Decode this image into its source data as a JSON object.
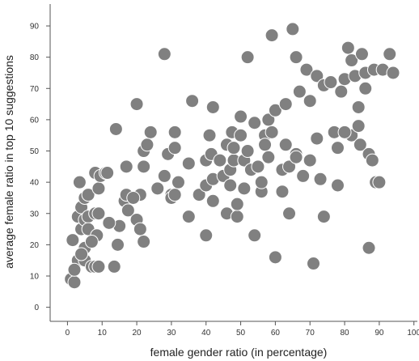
{
  "chart_data": {
    "type": "scatter",
    "xlabel": "female gender ratio (in percentage)",
    "ylabel": "average female ratio in top 10 suggestions",
    "xlim": [
      -5,
      101
    ],
    "ylim": [
      -4.5,
      97
    ],
    "xticks": [
      0,
      10,
      20,
      30,
      40,
      50,
      60,
      70,
      80,
      90,
      100
    ],
    "yticks": [
      0,
      10,
      20,
      30,
      40,
      50,
      60,
      70,
      80,
      90
    ],
    "color": "#808080",
    "x": [
      1,
      2,
      1.5,
      3,
      3,
      3.5,
      4,
      5,
      4,
      5,
      6,
      5,
      6,
      5,
      7,
      4,
      6,
      8,
      8,
      9,
      9,
      9.5,
      8,
      8.5,
      7,
      9,
      11,
      11.5,
      13.5,
      14,
      14.5,
      15,
      16.5,
      17,
      17.5,
      17,
      20,
      20,
      21,
      21,
      22,
      22,
      22,
      23,
      24,
      26,
      28,
      28,
      29,
      30,
      30,
      31,
      31,
      31,
      32,
      35,
      35,
      36,
      38,
      40,
      40,
      40,
      42,
      41,
      42,
      42,
      41.5,
      45,
      46,
      46,
      47,
      47,
      48,
      47.5,
      48,
      49,
      49,
      50,
      50,
      51,
      51,
      52,
      52,
      53,
      54,
      54,
      55,
      56,
      57,
      57,
      58,
      58,
      59,
      60,
      59,
      60,
      62,
      62,
      63,
      63,
      64,
      64,
      65,
      66,
      66,
      67,
      68,
      69,
      70,
      71,
      72,
      72,
      73,
      74,
      74,
      76,
      77,
      78,
      78,
      79,
      80,
      81,
      82,
      82,
      83,
      84,
      84,
      84.5,
      85,
      86,
      86,
      87,
      87,
      88,
      88.5,
      89,
      90,
      91,
      93,
      94,
      66,
      2,
      12,
      19,
      44,
      56,
      70,
      80
    ],
    "y": [
      9,
      8,
      21.5,
      15,
      29,
      40,
      25,
      28,
      32,
      35,
      36,
      19,
      29,
      15,
      13,
      17,
      25,
      43,
      30,
      38,
      30,
      42,
      13,
      23,
      21,
      13,
      43,
      43,
      13,
      57,
      20,
      26,
      34,
      45,
      31,
      36,
      65,
      28,
      36,
      25,
      21,
      50,
      45,
      52,
      56,
      38,
      81,
      42,
      49,
      36,
      35,
      56,
      51,
      36,
      40,
      29,
      46,
      66,
      36,
      39,
      47,
      23,
      64,
      55,
      34,
      41,
      49,
      42,
      52,
      30,
      44,
      39,
      47,
      56,
      51,
      29,
      33,
      61,
      55,
      47,
      38,
      80,
      50,
      44,
      23,
      59,
      45,
      37,
      55,
      52,
      60,
      48,
      87,
      16,
      56,
      63,
      37,
      44,
      52,
      65,
      30,
      45,
      89,
      80,
      49,
      69,
      42,
      76,
      47,
      14,
      74,
      54,
      41,
      71,
      29,
      72,
      56,
      51,
      39,
      69,
      73,
      83,
      79,
      55,
      74,
      64,
      58,
      52,
      81,
      75,
      70,
      19,
      49,
      47,
      76,
      40,
      40,
      76,
      81,
      75,
      48,
      12,
      27,
      35,
      47,
      40,
      66,
      56
    ]
  }
}
